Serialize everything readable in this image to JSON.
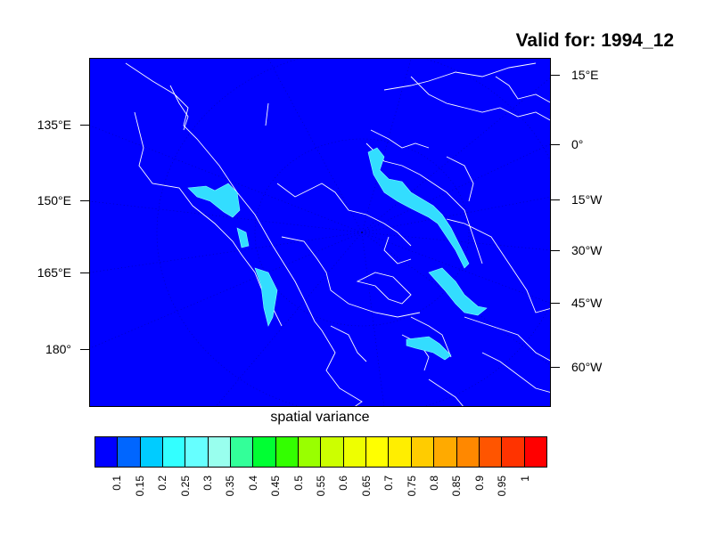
{
  "title": "Valid for: 1994_12",
  "subtitle": "spatial variance",
  "map": {
    "background_color": "#0000ff",
    "coastline_color": "#ffffff",
    "highlight_color": "#33ddff",
    "left_labels": [
      "135°E",
      "150°E",
      "165°E",
      "180°"
    ],
    "right_labels": [
      "15°E",
      "0°",
      "15°W",
      "30°W",
      "45°W",
      "60°W"
    ]
  },
  "colorbar": {
    "colors": [
      "#0000ff",
      "#0066ff",
      "#00ccff",
      "#33ffff",
      "#66ffff",
      "#99ffee",
      "#33ff99",
      "#00ff33",
      "#33ff00",
      "#99ff00",
      "#ccff00",
      "#eeff00",
      "#ffff00",
      "#ffee00",
      "#ffcc00",
      "#ffaa00",
      "#ff8800",
      "#ff5500",
      "#ff3300",
      "#ff0000"
    ],
    "labels": [
      "0.1",
      "0.15",
      "0.2",
      "0.25",
      "0.3",
      "0.35",
      "0.4",
      "0.45",
      "0.5",
      "0.55",
      "0.6",
      "0.65",
      "0.7",
      "0.75",
      "0.8",
      "0.85",
      "0.9",
      "0.95",
      "1"
    ]
  }
}
